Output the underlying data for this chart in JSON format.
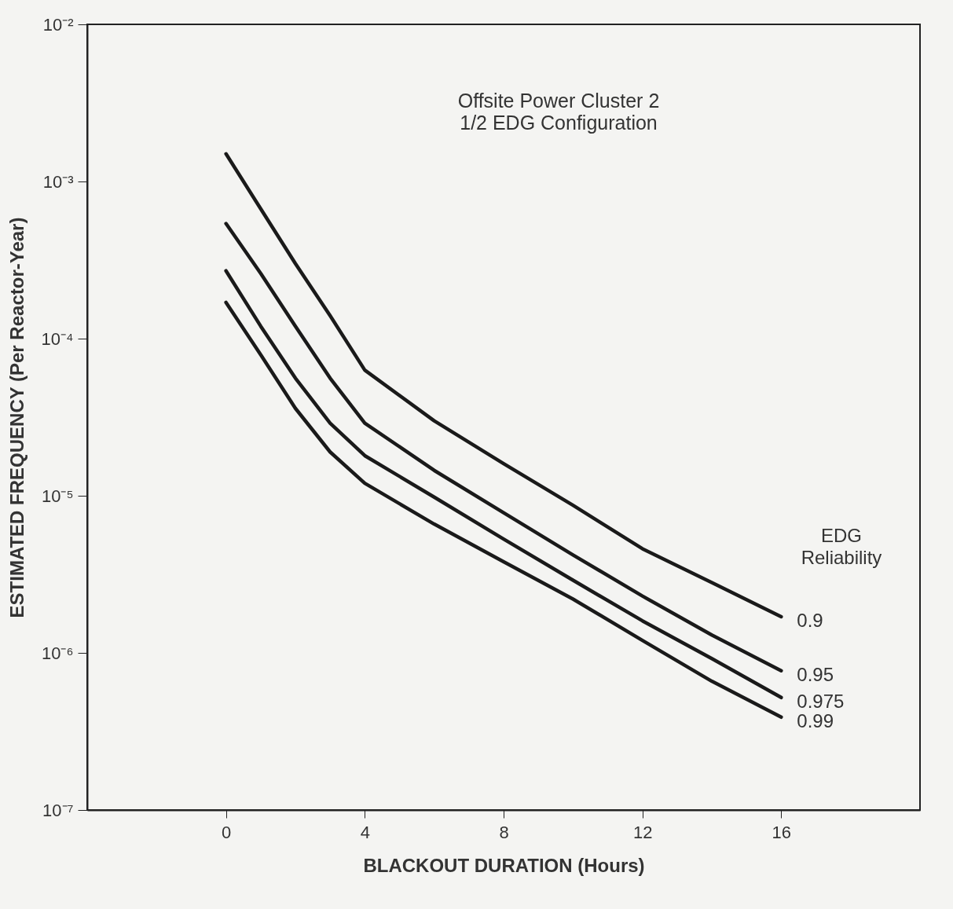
{
  "chart_data": {
    "type": "line",
    "title": "Offsite Power Cluster 2",
    "subtitle": "1/2 EDG Configuration",
    "xlabel": "BLACKOUT DURATION (Hours)",
    "ylabel": "ESTIMATED FREQUENCY (Per Reactor-Year)",
    "legend_title": "EDG Reliability",
    "x": [
      0,
      1,
      2,
      3,
      4,
      6,
      8,
      10,
      12,
      14,
      16
    ],
    "series": [
      {
        "name": "0.9",
        "color": "#1a1a1a",
        "values": [
          0.0015,
          0.00067,
          0.0003,
          0.00014,
          6.3e-05,
          3e-05,
          1.6e-05,
          8.7e-06,
          4.6e-06,
          2.8e-06,
          1.7e-06
        ]
      },
      {
        "name": "0.95",
        "color": "#1a1a1a",
        "values": [
          0.00054,
          0.00026,
          0.00012,
          5.6e-05,
          2.9e-05,
          1.45e-05,
          7.8e-06,
          4.2e-06,
          2.3e-06,
          1.3e-06,
          7.7e-07
        ]
      },
      {
        "name": "0.975",
        "color": "#1a1a1a",
        "values": [
          0.00027,
          0.00012,
          5.6e-05,
          2.9e-05,
          1.8e-05,
          9.8e-06,
          5.3e-06,
          2.9e-06,
          1.6e-06,
          9.2e-07,
          5.2e-07
        ]
      },
      {
        "name": "0.99",
        "color": "#1a1a1a",
        "values": [
          0.00017,
          7.9e-05,
          3.6e-05,
          1.9e-05,
          1.2e-05,
          6.6e-06,
          3.8e-06,
          2.2e-06,
          1.2e-06,
          6.6e-07,
          3.9e-07
        ]
      }
    ],
    "xlim": [
      -4,
      20
    ],
    "xticks": [
      0,
      4,
      8,
      12,
      16
    ],
    "ylim": [
      1e-07,
      0.01
    ],
    "yticks": [
      {
        "value": 1e-07,
        "label": "10⁻⁷"
      },
      {
        "value": 1e-06,
        "label": "10⁻⁶"
      },
      {
        "value": 1e-05,
        "label": "10⁻⁵"
      },
      {
        "value": 0.0001,
        "label": "10⁻⁴"
      },
      {
        "value": 0.001,
        "label": "10⁻³"
      },
      {
        "value": 0.01,
        "label": "10⁻²"
      }
    ],
    "log": "y",
    "grid": false,
    "legend": false,
    "marker": "none",
    "line_style": "solid"
  }
}
